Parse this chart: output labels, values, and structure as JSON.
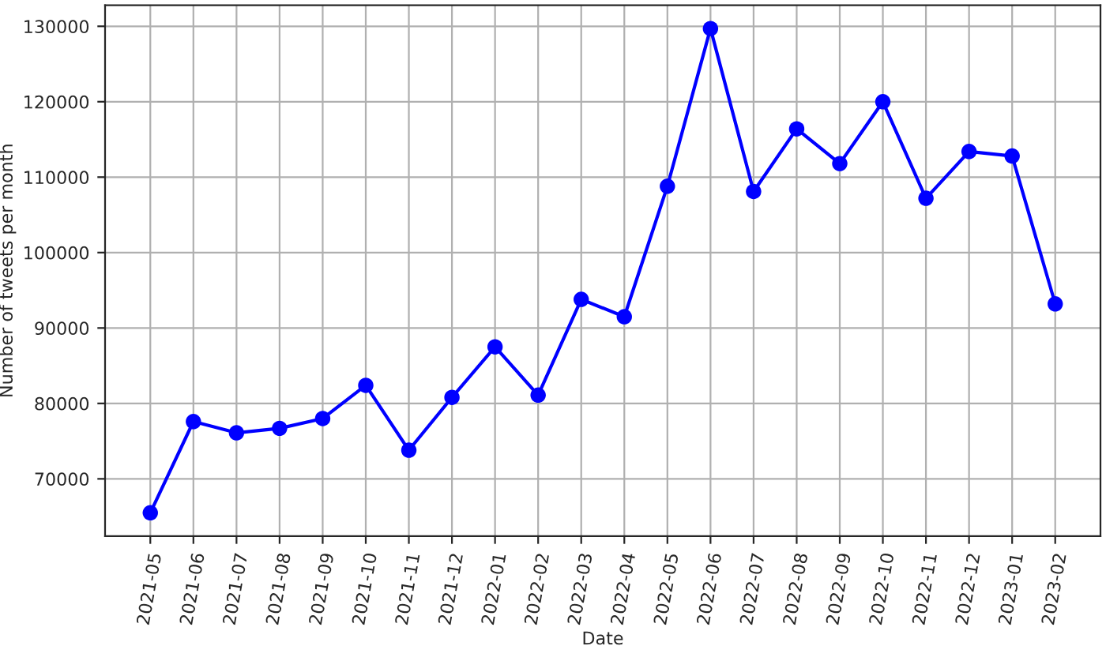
{
  "chart_data": {
    "type": "line",
    "xlabel": "Date",
    "ylabel": "Number of tweets per month",
    "categories": [
      "2021-05",
      "2021-06",
      "2021-07",
      "2021-08",
      "2021-09",
      "2021-10",
      "2021-11",
      "2021-12",
      "2022-01",
      "2022-02",
      "2022-03",
      "2022-04",
      "2022-05",
      "2022-06",
      "2022-07",
      "2022-08",
      "2022-09",
      "2022-10",
      "2022-11",
      "2022-12",
      "2023-01",
      "2023-02"
    ],
    "series": [
      {
        "color": "#0000ff",
        "values": [
          65500,
          77600,
          76100,
          76700,
          78000,
          82400,
          73800,
          80800,
          87500,
          81100,
          93800,
          91500,
          108800,
          129700,
          108100,
          116400,
          111800,
          120000,
          107200,
          113400,
          112800,
          93200
        ]
      }
    ],
    "ylim": [
      62400,
      132800
    ],
    "yticks": [
      70000,
      80000,
      90000,
      100000,
      110000,
      120000,
      130000
    ],
    "grid": true,
    "marker": "circle",
    "line_style": "solid"
  }
}
